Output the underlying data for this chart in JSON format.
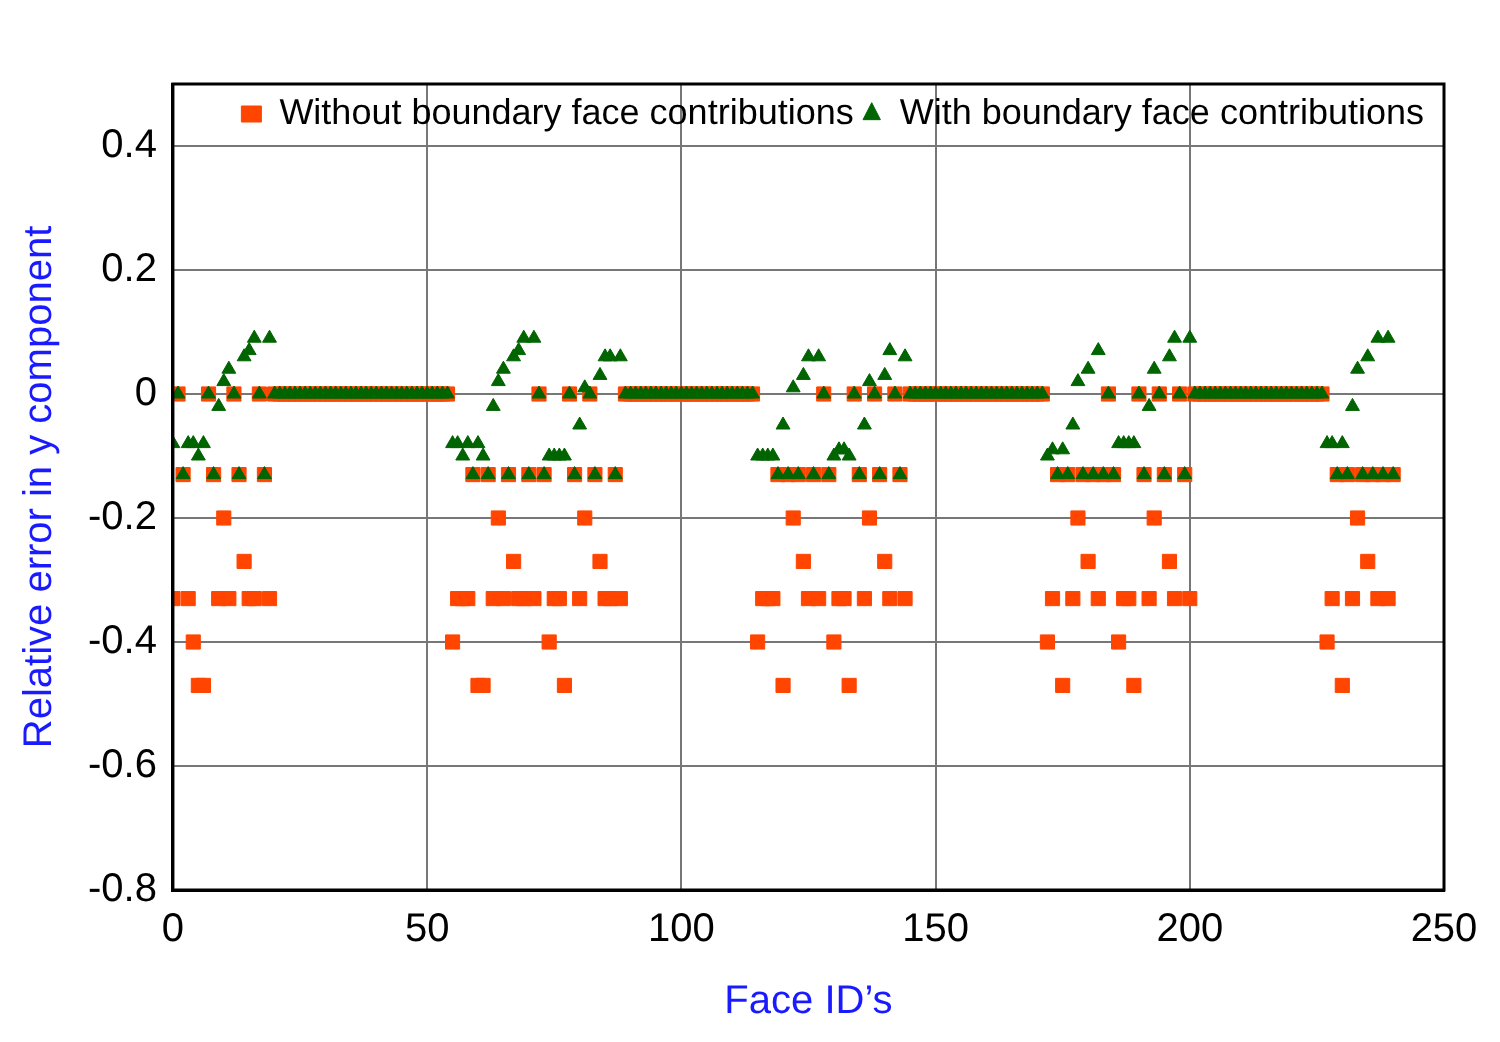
{
  "chart_data": {
    "type": "scatter",
    "xlabel": "Face ID’s",
    "ylabel": "Relative error in y component",
    "x": [
      0,
      1,
      2,
      3,
      4,
      5,
      6,
      7,
      8,
      9,
      10,
      11,
      12,
      13,
      14,
      15,
      16,
      17,
      18,
      19,
      20,
      21,
      22,
      23,
      24,
      25,
      26,
      27,
      28,
      29,
      30,
      31,
      32,
      33,
      34,
      35,
      36,
      37,
      38,
      39,
      40,
      41,
      42,
      43,
      44,
      45,
      46,
      47,
      48,
      49,
      50,
      51,
      52,
      53,
      54,
      55,
      56,
      57,
      58,
      59,
      60,
      61,
      62,
      63,
      64,
      65,
      66,
      67,
      68,
      69,
      70,
      71,
      72,
      73,
      74,
      75,
      76,
      77,
      78,
      79,
      80,
      81,
      82,
      83,
      84,
      85,
      86,
      87,
      88,
      89,
      90,
      91,
      92,
      93,
      94,
      95,
      96,
      97,
      98,
      99,
      100,
      101,
      102,
      103,
      104,
      105,
      106,
      107,
      108,
      109,
      110,
      111,
      112,
      113,
      114,
      115,
      116,
      117,
      118,
      119,
      120,
      121,
      122,
      123,
      124,
      125,
      126,
      127,
      128,
      129,
      130,
      131,
      132,
      133,
      134,
      135,
      136,
      137,
      138,
      139,
      140,
      141,
      142,
      143,
      144,
      145,
      146,
      147,
      148,
      149,
      150,
      151,
      152,
      153,
      154,
      155,
      156,
      157,
      158,
      159,
      160,
      161,
      162,
      163,
      164,
      165,
      166,
      167,
      168,
      169,
      170,
      171,
      172,
      173,
      174,
      175,
      176,
      177,
      178,
      179,
      180,
      181,
      182,
      183,
      184,
      185,
      186,
      187,
      188,
      189,
      190,
      191,
      192,
      193,
      194,
      195,
      196,
      197,
      198,
      199,
      200,
      201,
      202,
      203,
      204,
      205,
      206,
      207,
      208,
      209,
      210,
      211,
      212,
      213,
      214,
      215,
      216,
      217,
      218,
      219,
      220,
      221,
      222,
      223,
      224,
      225,
      226,
      227,
      228,
      229,
      230,
      231,
      232,
      233,
      234,
      235,
      236,
      237,
      238,
      239,
      240
    ],
    "series": [
      {
        "name": "Without boundary face contributions",
        "color": "#ff4500",
        "marker": "square",
        "values": [
          -0.33,
          0,
          -0.13,
          -0.33,
          -0.4,
          -0.47,
          -0.47,
          0,
          -0.13,
          -0.33,
          -0.2,
          -0.33,
          0,
          -0.13,
          -0.27,
          -0.33,
          -0.33,
          0,
          -0.13,
          -0.33,
          0,
          0,
          0,
          0,
          0,
          0,
          0,
          0,
          0,
          0,
          0,
          0,
          0,
          0,
          0,
          0,
          0,
          0,
          0,
          0,
          0,
          0,
          0,
          0,
          0,
          0,
          0,
          0,
          0,
          0,
          0,
          0,
          0,
          0,
          0,
          -0.4,
          -0.33,
          -0.33,
          -0.33,
          -0.13,
          -0.47,
          -0.47,
          -0.13,
          -0.33,
          -0.2,
          -0.33,
          -0.13,
          -0.27,
          -0.33,
          -0.33,
          -0.13,
          -0.33,
          0,
          -0.13,
          -0.4,
          -0.33,
          -0.33,
          -0.47,
          0,
          -0.13,
          -0.33,
          -0.2,
          0,
          -0.13,
          -0.27,
          -0.33,
          -0.33,
          -0.13,
          -0.33,
          0,
          0,
          0,
          0,
          0,
          0,
          0,
          0,
          0,
          0,
          0,
          0,
          0,
          0,
          0,
          0,
          0,
          0,
          0,
          0,
          0,
          0,
          0,
          0,
          0,
          0,
          -0.4,
          -0.33,
          -0.33,
          -0.33,
          -0.13,
          -0.47,
          -0.13,
          -0.2,
          -0.13,
          -0.27,
          -0.33,
          -0.13,
          -0.33,
          0,
          -0.13,
          -0.4,
          -0.33,
          -0.33,
          -0.47,
          0,
          -0.13,
          -0.33,
          -0.2,
          0,
          -0.13,
          -0.27,
          -0.33,
          0,
          -0.13,
          -0.33,
          0,
          0,
          0,
          0,
          0,
          0,
          0,
          0,
          0,
          0,
          0,
          0,
          0,
          0,
          0,
          0,
          0,
          0,
          0,
          0,
          0,
          0,
          0,
          0,
          0,
          0,
          0,
          -0.4,
          -0.33,
          -0.13,
          -0.47,
          -0.13,
          -0.33,
          -0.2,
          -0.13,
          -0.27,
          -0.13,
          -0.33,
          -0.13,
          0,
          -0.13,
          -0.4,
          -0.33,
          -0.33,
          -0.47,
          0,
          -0.13,
          -0.33,
          -0.2,
          0,
          -0.13,
          -0.27,
          -0.33,
          0,
          -0.13,
          -0.33,
          0,
          0,
          0,
          0,
          0,
          0,
          0,
          0,
          0,
          0,
          0,
          0,
          0,
          0,
          0,
          0,
          0,
          0,
          0,
          0,
          0,
          0,
          0,
          0,
          0,
          0,
          -0.4,
          -0.33,
          -0.13,
          -0.47,
          -0.13,
          -0.33,
          -0.2,
          -0.13,
          -0.27,
          -0.13,
          -0.33,
          -0.13,
          -0.33,
          -0.13
        ]
      },
      {
        "name": "With boundary face contributions",
        "color": "#006400",
        "marker": "triangle",
        "values": [
          -0.08,
          0,
          -0.13,
          -0.08,
          -0.08,
          -0.1,
          -0.08,
          0,
          -0.13,
          -0.02,
          0.02,
          0.04,
          0,
          -0.13,
          0.06,
          0.07,
          0.09,
          0,
          -0.13,
          0.09,
          0,
          0,
          0,
          0,
          0,
          0,
          0,
          0,
          0,
          0,
          0,
          0,
          0,
          0,
          0,
          0,
          0,
          0,
          0,
          0,
          0,
          0,
          0,
          0,
          0,
          0,
          0,
          0,
          0,
          0,
          0,
          0,
          0,
          0,
          0,
          -0.08,
          -0.08,
          -0.1,
          -0.08,
          -0.13,
          -0.08,
          -0.1,
          -0.13,
          -0.02,
          0.02,
          0.04,
          -0.13,
          0.06,
          0.07,
          0.09,
          -0.13,
          0.09,
          0,
          -0.13,
          -0.1,
          -0.1,
          -0.1,
          -0.1,
          0,
          -0.13,
          -0.05,
          0.01,
          0,
          -0.13,
          0.03,
          0.06,
          0.06,
          -0.13,
          0.06,
          0,
          0,
          0,
          0,
          0,
          0,
          0,
          0,
          0,
          0,
          0,
          0,
          0,
          0,
          0,
          0,
          0,
          0,
          0,
          0,
          0,
          0,
          0,
          0,
          0,
          0,
          -0.1,
          -0.1,
          -0.1,
          -0.1,
          -0.13,
          -0.05,
          -0.13,
          0.01,
          -0.13,
          0.03,
          0.06,
          -0.13,
          0.06,
          0,
          -0.13,
          -0.1,
          -0.09,
          -0.09,
          -0.1,
          0,
          -0.13,
          -0.05,
          0.02,
          0,
          -0.13,
          0.03,
          0.07,
          0,
          -0.13,
          0.06,
          0,
          0,
          0,
          0,
          0,
          0,
          0,
          0,
          0,
          0,
          0,
          0,
          0,
          0,
          0,
          0,
          0,
          0,
          0,
          0,
          0,
          0,
          0,
          0,
          0,
          0,
          0,
          -0.1,
          -0.09,
          -0.13,
          -0.09,
          -0.13,
          -0.05,
          0.02,
          -0.13,
          0.04,
          -0.13,
          0.07,
          -0.13,
          0,
          -0.13,
          -0.08,
          -0.08,
          -0.08,
          -0.08,
          0,
          -0.13,
          -0.02,
          0.04,
          0,
          -0.13,
          0.06,
          0.09,
          0,
          -0.13,
          0.09,
          0,
          0,
          0,
          0,
          0,
          0,
          0,
          0,
          0,
          0,
          0,
          0,
          0,
          0,
          0,
          0,
          0,
          0,
          0,
          0,
          0,
          0,
          0,
          0,
          0,
          0,
          -0.08,
          -0.08,
          -0.13,
          -0.08,
          -0.13,
          -0.02,
          0.04,
          -0.13,
          0.06,
          -0.13,
          0.09,
          -0.13,
          0.09,
          -0.13
        ]
      }
    ],
    "xlim": [
      0,
      250
    ],
    "xticks": [
      0,
      50,
      100,
      150,
      200,
      250
    ],
    "ylim": [
      -0.8,
      0.5
    ],
    "yticks": [
      -0.8,
      -0.6,
      -0.4,
      -0.2,
      0,
      0.2,
      0.4
    ],
    "grid": true,
    "legend": "top right"
  }
}
